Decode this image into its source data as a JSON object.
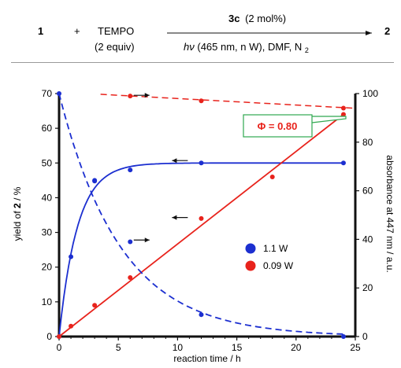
{
  "scheme": {
    "reactant": "1",
    "plus": "+",
    "reagent": "TEMPO",
    "reagent_equiv": "(2 equiv)",
    "catalyst_label": "3c",
    "catalyst_loading": "(2 mol%)",
    "conditions_hv": "hν",
    "conditions_main": "(465 nm, n W), DMF, N",
    "conditions_sub": "2",
    "product": "2"
  },
  "chart_data": {
    "type": "scatter",
    "xlabel": "reaction time / h",
    "ylabel_left_prefix": "yield of ",
    "ylabel_left_bold": "2",
    "ylabel_left_suffix": " / %",
    "ylabel_right": "absorbance at 447 nm / a.u.",
    "xlim": [
      0,
      25
    ],
    "ylim_left": [
      0,
      70
    ],
    "ylim_right": [
      0,
      100
    ],
    "xticks": [
      "0",
      "5",
      "10",
      "15",
      "20",
      "25"
    ],
    "yticks_left": [
      "0",
      "10",
      "20",
      "30",
      "40",
      "50",
      "60",
      "70"
    ],
    "yticks_right": [
      "0",
      "20",
      "40",
      "60",
      "80",
      "100"
    ],
    "legend": {
      "position": "right-middle",
      "entries": [
        "1.1 W",
        "0.09 W"
      ]
    },
    "annotation": {
      "text": "Φ = 0.80",
      "color": "#e8231c",
      "border": "#2fa84f"
    },
    "series": [
      {
        "name": "1.1 W",
        "color": "#1c2fd0",
        "axis": "left",
        "kind": "yield",
        "points": [
          [
            0,
            0
          ],
          [
            1,
            23
          ],
          [
            3,
            45
          ],
          [
            6,
            48
          ],
          [
            12,
            50
          ],
          [
            24,
            50
          ]
        ]
      },
      {
        "name": "0.09 W",
        "color": "#e8231c",
        "axis": "left",
        "kind": "yield",
        "points": [
          [
            0,
            0
          ],
          [
            1,
            3
          ],
          [
            3,
            9
          ],
          [
            6,
            17
          ],
          [
            12,
            34
          ],
          [
            18,
            46
          ],
          [
            24,
            64
          ]
        ]
      },
      {
        "name": "1.1 W",
        "color": "#1c2fd0",
        "axis": "right",
        "kind": "absorbance",
        "points": [
          [
            0,
            100
          ],
          [
            3,
            64
          ],
          [
            6,
            39
          ],
          [
            12,
            9
          ],
          [
            24,
            0
          ]
        ]
      },
      {
        "name": "0.09 W",
        "color": "#e8231c",
        "axis": "right",
        "kind": "absorbance",
        "points": [
          [
            6,
            99
          ],
          [
            12,
            97
          ],
          [
            24,
            94
          ]
        ]
      }
    ]
  }
}
